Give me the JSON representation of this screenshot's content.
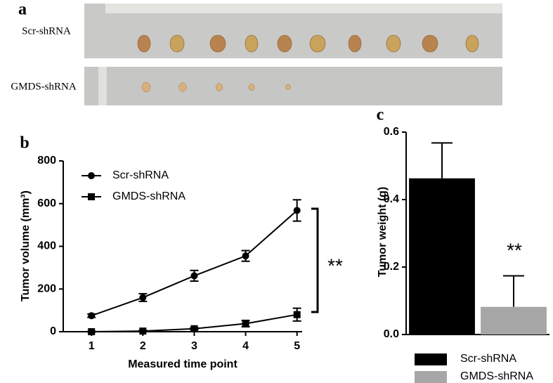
{
  "panel_a": {
    "label": "a",
    "rows": [
      "Scr-shRNA",
      "GMDS-shRNA"
    ]
  },
  "chart_data": [
    {
      "type": "line",
      "panel_label": "b",
      "x_label": "Measured time point",
      "y_label": "Tumor volume (mm³)",
      "x": [
        1,
        2,
        3,
        4,
        5
      ],
      "xlim": [
        0.45,
        5.1
      ],
      "xticks": [
        1,
        2,
        3,
        4,
        5
      ],
      "ylim": [
        0,
        800
      ],
      "yticks": [
        0,
        200,
        400,
        600,
        800
      ],
      "series": [
        {
          "name": "Scr-shRNA",
          "color": "#000000",
          "marker": "circle",
          "values": [
            75,
            160,
            262,
            355,
            568
          ],
          "errors": [
            8,
            18,
            25,
            25,
            50
          ]
        },
        {
          "name": "GMDS-shRNA",
          "color": "#000000",
          "marker": "square",
          "values": [
            0,
            3,
            14,
            38,
            80
          ],
          "errors": [
            2,
            3,
            5,
            15,
            30
          ]
        }
      ],
      "annotation": "**"
    },
    {
      "type": "bar",
      "panel_label": "c",
      "y_label": "Tumor weight (g)",
      "categories": [
        "Scr-shRNA",
        "GMDS-shRNA"
      ],
      "values": [
        0.463,
        0.082
      ],
      "errors": [
        0.105,
        0.092
      ],
      "colors": [
        "#000000",
        "#a6a6a6"
      ],
      "ylim": [
        0,
        0.6
      ],
      "yticks": [
        {
          "value": 0,
          "label": "0.0"
        },
        0.2,
        0.4,
        0.6
      ],
      "annotation": "**"
    }
  ]
}
